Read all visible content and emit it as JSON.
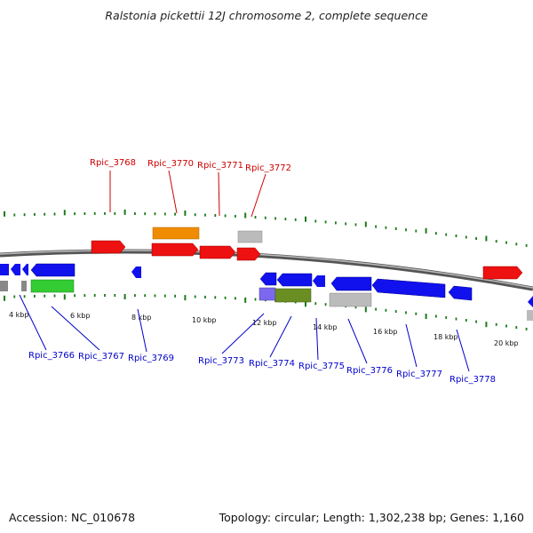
{
  "title": "Ralstonia pickettii 12J chromosome 2, complete sequence",
  "footer": {
    "accession": "Accession: NC_010678",
    "topology": "Topology: circular; Length: 1,302,238 bp; Genes: 1,160"
  },
  "colors": {
    "backbone": "#888888",
    "tick": "#1a7a1a",
    "forward_label": "#cc0000",
    "reverse_label": "#0000cc",
    "gene_red": "#ee1111",
    "gene_blue": "#1111ee",
    "gene_orange": "#f08c00",
    "gene_green": "#33cc33",
    "gene_olive": "#6b8e23",
    "gene_gray": "#bbbbbb",
    "gene_purple": "#7b68ee"
  },
  "scale": {
    "unit": "kbp",
    "labels": [
      "4 kbp",
      "6 kbp",
      "8 kbp",
      "10 kbp",
      "12 kbp",
      "14 kbp",
      "16 kbp",
      "18 kbp",
      "20 kbp"
    ]
  },
  "forward_labels": [
    "Rpic_3768",
    "Rpic_3770",
    "Rpic_3771",
    "Rpic_3772"
  ],
  "reverse_labels": [
    "Rpic_3766",
    "Rpic_3767",
    "Rpic_3769",
    "Rpic_3773",
    "Rpic_3774",
    "Rpic_3775",
    "Rpic_3776",
    "Rpic_3777",
    "Rpic_3778"
  ]
}
